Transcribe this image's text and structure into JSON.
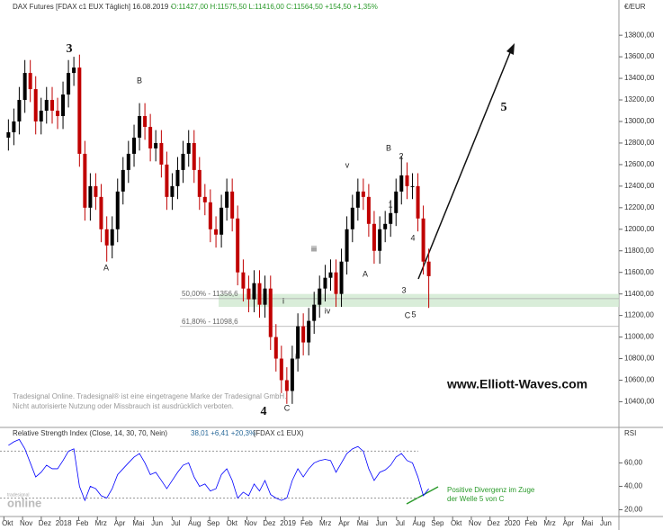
{
  "header": {
    "title": "DAX Futures [FDAX c1 EUX  Täglich] 16.08.2019 -",
    "quote": "O:11427,00 H:11575,50 L:11416,00 C:11564,50 +154,50 +1,35%",
    "currency": "€/EUR"
  },
  "watermark": [
    "Tradesignal Online. Tradesignal® ist eine eingetragene Marke der Tradesignal GmbH.",
    "Nicht autorisierte Nutzung oder Missbrauch ist ausdrücklich verboten."
  ],
  "website": "www.Elliott-Waves.com",
  "logo": {
    "small": "tradesignal",
    "big": "online"
  },
  "chart_data": [
    {
      "type": "candlestick",
      "up_color": "#000000",
      "down_color": "#c00000",
      "x": [
        0.05,
        0.34,
        0.63,
        0.93,
        1.22,
        1.51,
        1.8,
        2.09,
        2.39,
        2.68,
        2.97,
        3.26,
        3.55,
        3.85,
        4.14,
        4.43,
        4.72,
        5.01,
        5.31,
        5.6,
        5.89,
        6.18,
        6.47,
        6.77,
        7.06,
        7.35,
        7.64,
        7.93,
        8.23,
        8.52,
        8.81,
        9.1,
        9.39,
        9.69,
        9.98,
        10.27,
        10.56,
        10.85,
        11.15,
        11.44,
        11.73,
        12.02,
        12.31,
        12.61,
        12.9,
        13.19,
        13.48,
        13.77,
        14.07,
        14.36,
        14.65,
        14.94,
        15.23,
        15.53,
        15.82,
        16.11,
        16.4,
        16.69,
        16.99,
        17.28,
        17.57,
        17.86,
        18.15,
        18.45,
        18.74,
        19.03,
        19.32,
        19.61,
        19.91,
        20.2,
        20.49,
        20.78,
        21.07,
        21.37,
        21.66,
        21.95,
        22.24,
        22.53
      ],
      "open": [
        12850,
        12900,
        13000,
        13200,
        13450,
        13300,
        13000,
        13100,
        13200,
        13100,
        13050,
        13250,
        13450,
        13500,
        12700,
        12200,
        12400,
        12300,
        12000,
        11850,
        12000,
        12350,
        12550,
        12700,
        12850,
        13050,
        12950,
        12750,
        12800,
        12600,
        12300,
        12400,
        12550,
        12700,
        12800,
        12550,
        12300,
        12250,
        12000,
        11950,
        12200,
        12350,
        12100,
        11600,
        11450,
        11350,
        11500,
        11300,
        11450,
        11000,
        10800,
        10600,
        10500,
        10800,
        11100,
        10950,
        11150,
        11300,
        11450,
        11550,
        11600,
        11400,
        11700,
        12000,
        12200,
        12350,
        12300,
        12050,
        11800,
        12000,
        12050,
        12150,
        12350,
        12500,
        12400,
        12400,
        12100,
        11700
      ],
      "high": [
        13020,
        13120,
        13320,
        13570,
        13570,
        13420,
        13220,
        13320,
        13320,
        13220,
        13370,
        13570,
        13600,
        13620,
        12820,
        12520,
        12520,
        12420,
        12120,
        12120,
        12470,
        12670,
        12820,
        12970,
        13170,
        13170,
        13070,
        12920,
        12920,
        12720,
        12520,
        12670,
        12820,
        12920,
        12920,
        12670,
        12420,
        12370,
        12120,
        12320,
        12470,
        12470,
        12220,
        11720,
        11570,
        11620,
        11620,
        11570,
        11570,
        11120,
        10920,
        10720,
        10920,
        11220,
        11220,
        11270,
        11420,
        11570,
        11670,
        11720,
        11720,
        11820,
        12120,
        12320,
        12470,
        12470,
        12420,
        12170,
        12120,
        12170,
        12270,
        12470,
        12680,
        12620,
        12520,
        12520,
        12220,
        11820
      ],
      "low": [
        12730,
        12780,
        12880,
        13080,
        13180,
        12880,
        12880,
        12980,
        12980,
        12930,
        12930,
        13130,
        13330,
        12580,
        12080,
        12080,
        12180,
        11880,
        11700,
        11730,
        11880,
        12230,
        12430,
        12580,
        12730,
        12830,
        12630,
        12630,
        12480,
        12180,
        12180,
        12280,
        12430,
        12580,
        12430,
        12180,
        12130,
        11880,
        11830,
        11830,
        12080,
        11980,
        11480,
        11330,
        11230,
        11230,
        11180,
        11180,
        10880,
        10680,
        10480,
        10380,
        10380,
        10680,
        10830,
        10830,
        11030,
        11180,
        11330,
        11430,
        11280,
        11280,
        11580,
        11880,
        12080,
        12180,
        11930,
        11680,
        11680,
        11880,
        11930,
        12030,
        12230,
        12280,
        12280,
        11980,
        11580,
        11270
      ],
      "close": [
        12900,
        13000,
        13200,
        13450,
        13300,
        13000,
        13100,
        13200,
        13100,
        13050,
        13250,
        13450,
        13500,
        12700,
        12200,
        12400,
        12300,
        12000,
        11850,
        12000,
        12350,
        12550,
        12700,
        12850,
        13050,
        12950,
        12750,
        12800,
        12600,
        12300,
        12400,
        12550,
        12700,
        12800,
        12550,
        12300,
        12250,
        12000,
        11950,
        12200,
        12350,
        12100,
        11600,
        11450,
        11350,
        11500,
        11300,
        11450,
        11000,
        10800,
        10600,
        10500,
        10800,
        11100,
        10950,
        11150,
        11300,
        11450,
        11550,
        11600,
        11400,
        11700,
        12000,
        12200,
        12350,
        12300,
        12050,
        11800,
        12000,
        12050,
        12150,
        12350,
        12500,
        12400,
        12400,
        12100,
        11700,
        11565
      ],
      "xlim": [
        -0.4,
        32.7
      ],
      "ylim": [
        10170,
        14010
      ],
      "yticks": [
        {
          "value": 10400,
          "label": "10400,00"
        },
        {
          "value": 10600,
          "label": "10600,00"
        },
        {
          "value": 10800,
          "label": "10800,00"
        },
        {
          "value": 11000,
          "label": "11000,00"
        },
        {
          "value": 11200,
          "label": "11200,00"
        },
        {
          "value": 11400,
          "label": "11400,00"
        },
        {
          "value": 11600,
          "label": "11600,00"
        },
        {
          "value": 11800,
          "label": "11800,00"
        },
        {
          "value": 12000,
          "label": "12000,00"
        },
        {
          "value": 12200,
          "label": "12200,00"
        },
        {
          "value": 12400,
          "label": "12400,00"
        },
        {
          "value": 12600,
          "label": "12600,00"
        },
        {
          "value": 12800,
          "label": "12800,00"
        },
        {
          "value": 13000,
          "label": "13000,00"
        },
        {
          "value": 13200,
          "label": "13200,00"
        },
        {
          "value": 13400,
          "label": "13400,00"
        },
        {
          "value": 13600,
          "label": "13600,00"
        },
        {
          "value": 13800,
          "label": "13800,00"
        }
      ],
      "fib_levels": [
        {
          "value": 11356.6,
          "label": "50,00% - 11356,6"
        },
        {
          "value": 11098.6,
          "label": "61,80% - 11098,6"
        }
      ],
      "zone": [
        11280,
        11400
      ],
      "zone_color": "#cfe9cf",
      "annotations": [
        "3",
        "B",
        "A",
        "4",
        "C",
        "ii",
        "iii",
        "iv",
        "v",
        "i",
        "A",
        "B",
        "2",
        "1",
        "3",
        "C",
        "5",
        "4",
        "5"
      ]
    },
    {
      "type": "line",
      "title": "Relative Strength Index (Close, 14, 30, 70, Nein)",
      "quote": "38,01 +6,41 +20,3%",
      "source": "[FDAX c1 EUX)",
      "axis_label": "RSI",
      "series": [
        {
          "name": "RSI",
          "color": "#0000ff",
          "values": [
            75,
            78,
            80,
            72,
            60,
            48,
            52,
            58,
            55,
            55,
            62,
            70,
            72,
            40,
            28,
            40,
            38,
            32,
            30,
            38,
            50,
            55,
            60,
            65,
            68,
            60,
            50,
            52,
            45,
            38,
            45,
            52,
            58,
            60,
            48,
            40,
            42,
            36,
            38,
            50,
            55,
            45,
            30,
            35,
            32,
            42,
            36,
            45,
            33,
            30,
            28,
            30,
            45,
            55,
            48,
            55,
            60,
            62,
            63,
            62,
            52,
            60,
            68,
            72,
            74,
            70,
            55,
            45,
            52,
            54,
            58,
            65,
            68,
            62,
            60,
            48,
            32,
            38
          ]
        }
      ],
      "x": [
        0.05,
        0.34,
        0.63,
        0.93,
        1.22,
        1.51,
        1.8,
        2.09,
        2.39,
        2.68,
        2.97,
        3.26,
        3.55,
        3.85,
        4.14,
        4.43,
        4.72,
        5.01,
        5.31,
        5.6,
        5.89,
        6.18,
        6.47,
        6.77,
        7.06,
        7.35,
        7.64,
        7.93,
        8.23,
        8.52,
        8.81,
        9.1,
        9.39,
        9.69,
        9.98,
        10.27,
        10.56,
        10.85,
        11.15,
        11.44,
        11.73,
        12.02,
        12.31,
        12.61,
        12.9,
        13.19,
        13.48,
        13.77,
        14.07,
        14.36,
        14.65,
        14.94,
        15.23,
        15.53,
        15.82,
        16.11,
        16.4,
        16.69,
        16.99,
        17.28,
        17.57,
        17.86,
        18.15,
        18.45,
        18.74,
        19.03,
        19.32,
        19.61,
        19.91,
        20.2,
        20.49,
        20.78,
        21.07,
        21.37,
        21.66,
        21.95,
        22.24,
        22.53
      ],
      "xlim": [
        -0.4,
        32.7
      ],
      "ylim": [
        15,
        88
      ],
      "yticks": [
        {
          "value": 20,
          "label": "20,00"
        },
        {
          "value": 40,
          "label": "40,00"
        },
        {
          "value": 60,
          "label": "60,00"
        }
      ],
      "guides": [
        30,
        70
      ],
      "annotation": [
        "Positive Divergenz im Zuge",
        "der Welle 5 von C"
      ],
      "xticks": [
        {
          "value": 0,
          "label": "Okt"
        },
        {
          "value": 1,
          "label": "Nov"
        },
        {
          "value": 2,
          "label": "Dez"
        },
        {
          "value": 3,
          "label": "2018"
        },
        {
          "value": 4,
          "label": "Feb"
        },
        {
          "value": 5,
          "label": "Mrz"
        },
        {
          "value": 6,
          "label": "Apr"
        },
        {
          "value": 7,
          "label": "Mai"
        },
        {
          "value": 8,
          "label": "Jun"
        },
        {
          "value": 9,
          "label": "Jul"
        },
        {
          "value": 10,
          "label": "Aug"
        },
        {
          "value": 11,
          "label": "Sep"
        },
        {
          "value": 12,
          "label": "Okt"
        },
        {
          "value": 13,
          "label": "Nov"
        },
        {
          "value": 14,
          "label": "Dez"
        },
        {
          "value": 15,
          "label": "2019"
        },
        {
          "value": 16,
          "label": "Feb"
        },
        {
          "value": 17,
          "label": "Mrz"
        },
        {
          "value": 18,
          "label": "Apr"
        },
        {
          "value": 19,
          "label": "Mai"
        },
        {
          "value": 20,
          "label": "Jun"
        },
        {
          "value": 21,
          "label": "Jul"
        },
        {
          "value": 22,
          "label": "Aug"
        },
        {
          "value": 23,
          "label": "Sep"
        },
        {
          "value": 24,
          "label": "Okt"
        },
        {
          "value": 25,
          "label": "Nov"
        },
        {
          "value": 26,
          "label": "Dez"
        },
        {
          "value": 27,
          "label": "2020"
        },
        {
          "value": 28,
          "label": "Feb"
        },
        {
          "value": 29,
          "label": "Mrz"
        },
        {
          "value": 30,
          "label": "Apr"
        },
        {
          "value": 31,
          "label": "Mai"
        },
        {
          "value": 32,
          "label": "Jun"
        }
      ]
    }
  ]
}
